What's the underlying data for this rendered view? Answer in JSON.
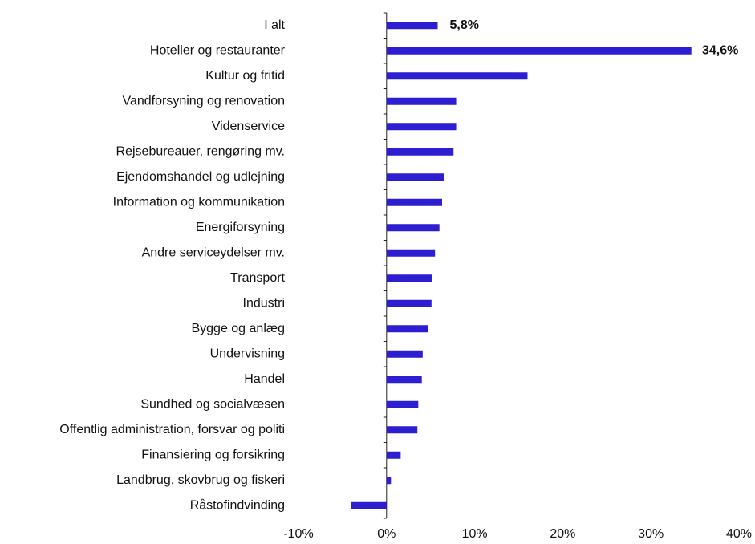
{
  "chart_data": {
    "type": "hbar",
    "categories": [
      "I alt",
      "Hoteller og restauranter",
      "Kultur og fritid",
      "Vandforsyning og renovation",
      "Videnservice",
      "Rejsebureauer, rengøring mv.",
      "Ejendomshandel og udlejning",
      "Information og kommunikation",
      "Energiforsyning",
      "Andre serviceydelser mv.",
      "Transport",
      "Industri",
      "Bygge og anlæg",
      "Undervisning",
      "Handel",
      "Sundhed og socialvæsen",
      "Offentlig administration, forsvar og politi",
      "Finansiering og forsikring",
      "Landbrug, skovbrug og fiskeri",
      "Råstofindvinding"
    ],
    "values": [
      5.8,
      34.6,
      16.0,
      7.9,
      7.9,
      7.6,
      6.5,
      6.3,
      6.0,
      5.5,
      5.2,
      5.1,
      4.7,
      4.1,
      4.0,
      3.6,
      3.5,
      1.6,
      0.5,
      -4.0
    ],
    "value_labels": [
      "5,8%",
      "34,6%",
      null,
      null,
      null,
      null,
      null,
      null,
      null,
      null,
      null,
      null,
      null,
      null,
      null,
      null,
      null,
      null,
      null,
      null
    ],
    "color": "#2d1fd1",
    "xlim": [
      -10,
      40
    ],
    "xticks": [
      {
        "value": -10,
        "label": "-10%"
      },
      {
        "value": 0,
        "label": "0%"
      },
      {
        "value": 10,
        "label": "10%"
      },
      {
        "value": 20,
        "label": "20%"
      },
      {
        "value": 30,
        "label": "30%"
      },
      {
        "value": 40,
        "label": "40%"
      }
    ],
    "grid": false
  }
}
